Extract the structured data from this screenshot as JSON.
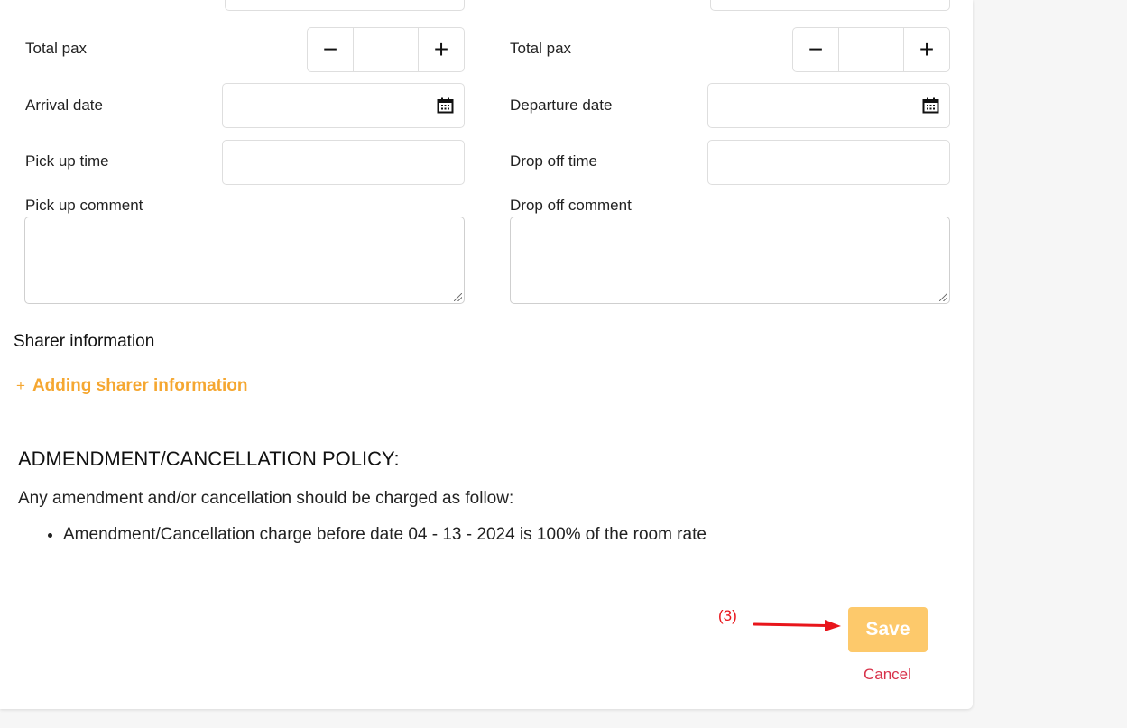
{
  "left": {
    "total_pax": "Total pax",
    "date_label": "Arrival date",
    "time_label": "Pick up time",
    "comment_label": "Pick up comment"
  },
  "right": {
    "total_pax": "Total pax",
    "date_label": "Departure date",
    "time_label": "Drop off time",
    "comment_label": "Drop off comment"
  },
  "stepper": {
    "minus": "−",
    "plus": "+",
    "value": ""
  },
  "sharer": {
    "title": "Sharer information",
    "add_icon": "+",
    "add_label": "Adding sharer information",
    "accent": "#f5a731"
  },
  "policy": {
    "title": "ADMENDMENT/CANCELLATION POLICY:",
    "intro": "Any amendment and/or cancellation should be charged as follow:",
    "items": [
      "Amendment/Cancellation charge before date 04 - 13 - 2024 is 100% of the room rate"
    ]
  },
  "annotation": {
    "label": "(3)",
    "color": "#e8151b"
  },
  "actions": {
    "save": "Save",
    "cancel": "Cancel",
    "save_color": "#fdc96b",
    "cancel_color": "#d8324a"
  }
}
